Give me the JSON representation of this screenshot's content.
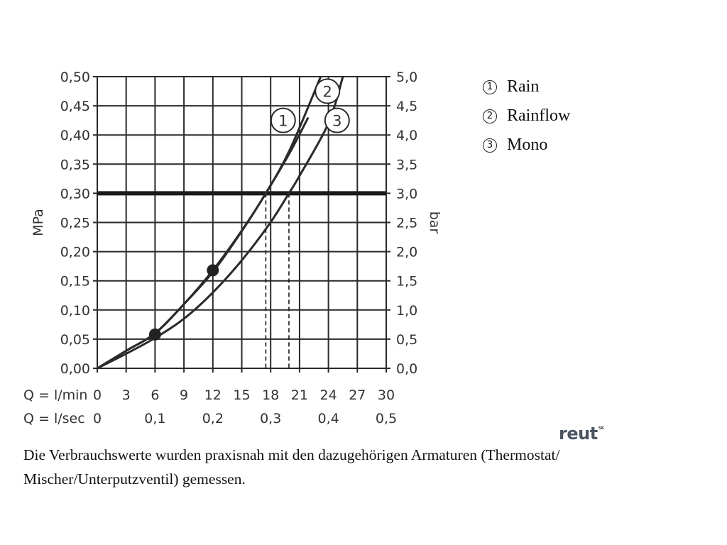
{
  "chart_data": {
    "type": "line",
    "ylabel_left": "MPa",
    "ylabel_right": "bar",
    "ylim": [
      0,
      0.5
    ],
    "xlim": [
      0,
      30
    ],
    "grid": true,
    "y_ticks_left": [
      "0,00",
      "0,05",
      "0,10",
      "0,15",
      "0,20",
      "0,25",
      "0,30",
      "0,35",
      "0,40",
      "0,45",
      "0,50"
    ],
    "y_ticks_right": [
      "0,0",
      "0,5",
      "1,0",
      "1,5",
      "2,0",
      "2,5",
      "3,0",
      "3,5",
      "4,0",
      "4,5",
      "5,0"
    ],
    "x_rows": [
      {
        "label": "Q = l/min",
        "ticks": [
          "0",
          "3",
          "6",
          "9",
          "12",
          "15",
          "18",
          "21",
          "24",
          "27",
          "30"
        ],
        "positions": [
          0,
          3,
          6,
          9,
          12,
          15,
          18,
          21,
          24,
          27,
          30
        ]
      },
      {
        "label": "Q = l/sec",
        "ticks": [
          "0",
          "0,1",
          "0,2",
          "0,3",
          "0,4",
          "0,5"
        ],
        "positions": [
          0,
          6,
          12,
          18,
          24,
          30
        ]
      }
    ],
    "reference_line": {
      "y": 0.3
    },
    "dashed_markers": [
      {
        "x": 17.5,
        "y": 0.3
      },
      {
        "x": 19.9,
        "y": 0.3
      }
    ],
    "series": [
      {
        "name": "1",
        "x": [
          0,
          3,
          6,
          9,
          12,
          15,
          17.5,
          20,
          21.9
        ],
        "y": [
          0,
          0.03,
          0.06,
          0.11,
          0.165,
          0.235,
          0.3,
          0.37,
          0.43
        ]
      },
      {
        "name": "2",
        "x": [
          0,
          3,
          6,
          9,
          12,
          15,
          17.5,
          20,
          23.2
        ],
        "y": [
          0,
          0.03,
          0.06,
          0.11,
          0.168,
          0.236,
          0.3,
          0.375,
          0.5
        ]
      },
      {
        "name": "3",
        "x": [
          0,
          3,
          6,
          9,
          12,
          15,
          17.9,
          19.9,
          21,
          24,
          25.5
        ],
        "y": [
          0,
          0.025,
          0.052,
          0.085,
          0.13,
          0.185,
          0.248,
          0.3,
          0.33,
          0.42,
          0.5
        ]
      }
    ],
    "points": [
      {
        "x": 6,
        "y": 0.058
      },
      {
        "x": 12,
        "y": 0.168
      }
    ],
    "curve_tags": [
      {
        "label": "1",
        "x": 19.3,
        "y": 0.425
      },
      {
        "label": "2",
        "x": 23.9,
        "y": 0.475
      },
      {
        "label": "3",
        "x": 24.9,
        "y": 0.425
      }
    ]
  },
  "legend": [
    {
      "num": "1",
      "label": "Rain"
    },
    {
      "num": "2",
      "label": "Rainflow"
    },
    {
      "num": "3",
      "label": "Mono"
    }
  ],
  "logo": {
    "text": "reut",
    "mark": "SK"
  },
  "note": "Die Verbrauchswerte wurden praxisnah mit den dazugehörigen Armaturen (Thermostat/ Mischer/Unterputzventil) gemessen."
}
